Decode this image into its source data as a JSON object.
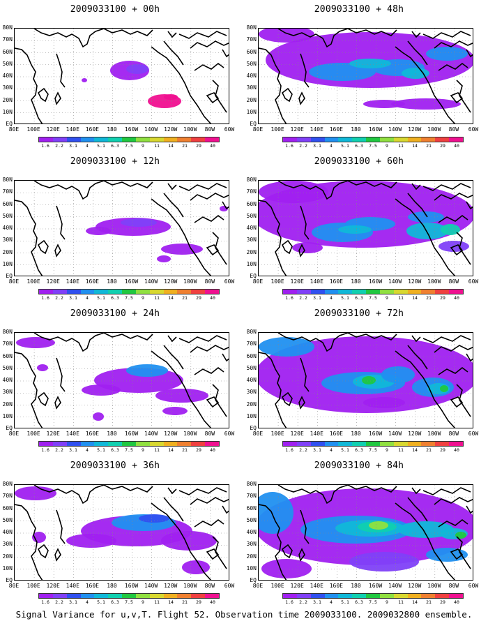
{
  "panels": [
    {
      "title": "2009033100 + 00h"
    },
    {
      "title": "2009033100 + 48h"
    },
    {
      "title": "2009033100 + 12h"
    },
    {
      "title": "2009033100 + 60h"
    },
    {
      "title": "2009033100 + 24h"
    },
    {
      "title": "2009033100 + 72h"
    },
    {
      "title": "2009033100 + 36h"
    },
    {
      "title": "2009033100 + 84h"
    }
  ],
  "lat_labels": [
    "80N",
    "70N",
    "60N",
    "50N",
    "40N",
    "30N",
    "20N",
    "10N",
    "EQ"
  ],
  "lon_labels": [
    "80E",
    "100E",
    "120E",
    "140E",
    "160E",
    "180",
    "160W",
    "140W",
    "120W",
    "100W",
    "80W",
    "60W"
  ],
  "colorbar": {
    "labels": [
      "1.6",
      "2.2",
      "3.1",
      "4",
      "5.1",
      "6.3",
      "7.5",
      "9",
      "11",
      "14",
      "21",
      "29",
      "40"
    ],
    "colors": [
      "#a020f0",
      "#8040f8",
      "#3050f0",
      "#2090f0",
      "#10b8d8",
      "#10d0b0",
      "#20c840",
      "#90e040",
      "#d8d830",
      "#f0b020",
      "#f08030",
      "#f04040",
      "#f01090"
    ]
  },
  "caption": "Signal Variance for u,v,T. Flight 52. Observation time 2009033100. 2009032800 ensemble."
}
